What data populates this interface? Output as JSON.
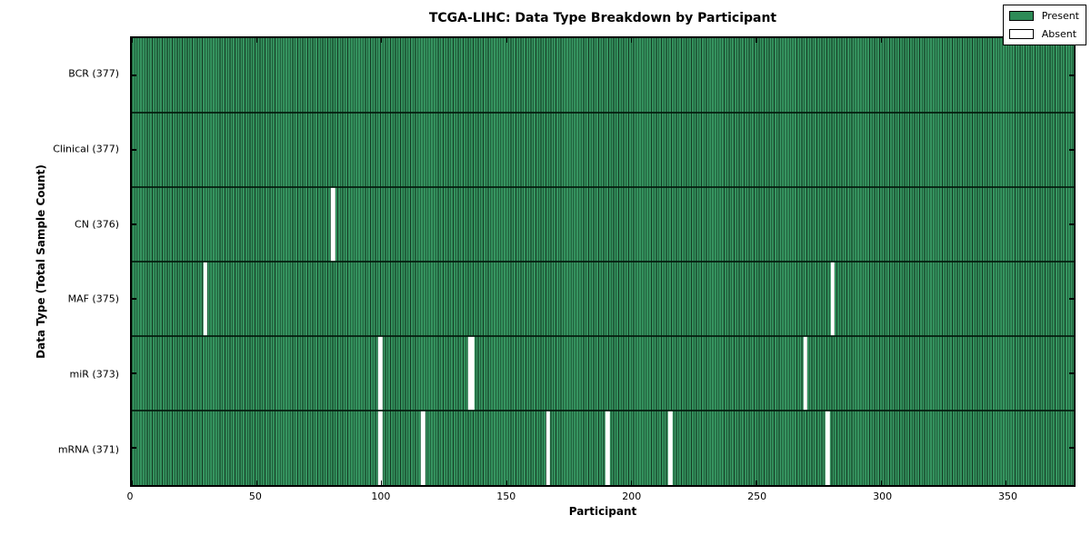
{
  "figure": {
    "title": "TCGA-LIHC: Data Type Breakdown by Participant",
    "xlabel": "Participant",
    "ylabel": "Data Type (Total Sample Count)"
  },
  "legend": {
    "items": [
      {
        "label": "Present",
        "color": "#2E8B57"
      },
      {
        "label": "Absent",
        "color": "#FFFFFF"
      }
    ]
  },
  "colors": {
    "present_fill": "#2E8B57",
    "present_light_stripe": "#3E9C69",
    "present_dark_stripe": "#143923",
    "absent_fill": "#FFFFFF",
    "axis_border": "#000000",
    "background": "#FFFFFF"
  },
  "chart_data": {
    "type": "heatmap",
    "title": "TCGA-LIHC: Data Type Breakdown by Participant",
    "xlabel": "Participant",
    "ylabel": "Data Type (Total Sample Count)",
    "xlim": [
      0,
      377
    ],
    "x_ticks": [
      0,
      50,
      100,
      150,
      200,
      250,
      300,
      350
    ],
    "n_participants": 377,
    "grid": false,
    "legend_position": "upper right",
    "legend_entries": [
      "Present",
      "Absent"
    ],
    "cell_colors": {
      "present": "#2E8B57",
      "absent": "#FFFFFF"
    },
    "rows": [
      {
        "label": "BCR (377)",
        "data_type": "BCR",
        "total_samples": 377,
        "absent_participants": []
      },
      {
        "label": "Clinical (377)",
        "data_type": "Clinical",
        "total_samples": 377,
        "absent_participants": []
      },
      {
        "label": "CN (376)",
        "data_type": "CN",
        "total_samples": 376,
        "absent_participants": [
          80
        ]
      },
      {
        "label": "MAF (375)",
        "data_type": "MAF",
        "total_samples": 375,
        "absent_participants": [
          29,
          280
        ]
      },
      {
        "label": "miR (373)",
        "data_type": "miR",
        "total_samples": 373,
        "absent_participants": [
          99,
          135,
          136,
          269
        ]
      },
      {
        "label": "mRNA (371)",
        "data_type": "mRNA",
        "total_samples": 371,
        "absent_participants": [
          99,
          116,
          166,
          190,
          215,
          278
        ]
      }
    ]
  }
}
